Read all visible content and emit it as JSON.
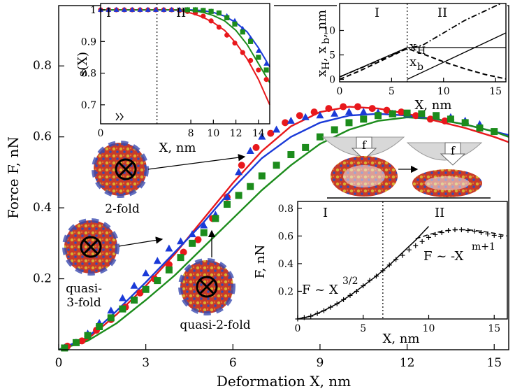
{
  "colors": {
    "red": "#e8181c",
    "blue": "#1a3ad8",
    "green": "#1c8c1c",
    "black": "#000000",
    "capsid_blue": "#3a4ab0",
    "capsid_red": "#c83a2a",
    "capsid_yellow": "#d8b030"
  },
  "chart_data": [
    {
      "id": "main",
      "type": "scatter",
      "xlabel": "Deformation X, nm",
      "ylabel": "Force F, nN",
      "xlim": [
        0,
        15.5
      ],
      "ylim": [
        0,
        0.97
      ],
      "xticks": [
        0,
        3,
        6,
        9,
        12,
        15
      ],
      "yticks": [
        0.2,
        0.4,
        0.6,
        0.8
      ],
      "series": [
        {
          "name": "2-fold",
          "color": "red",
          "marker": "circle",
          "x": [
            0.3,
            0.8,
            1.3,
            1.8,
            2.3,
            2.8,
            3.3,
            3.8,
            4.3,
            4.8,
            5.3,
            5.8,
            6.3,
            6.8,
            7.3,
            7.8,
            8.3,
            8.8,
            9.3,
            9.8,
            10.3,
            10.8,
            11.3,
            11.8,
            12.3,
            12.8,
            13.3
          ],
          "y": [
            0.01,
            0.025,
            0.055,
            0.085,
            0.12,
            0.16,
            0.2,
            0.24,
            0.275,
            0.31,
            0.37,
            0.43,
            0.52,
            0.57,
            0.61,
            0.64,
            0.66,
            0.67,
            0.68,
            0.685,
            0.685,
            0.68,
            0.675,
            0.67,
            0.66,
            0.65,
            0.645
          ]
        },
        {
          "name": "quasi-3-fold",
          "color": "blue",
          "marker": "triangle",
          "x": [
            0.2,
            0.6,
            1.0,
            1.4,
            1.8,
            2.2,
            2.6,
            3.0,
            3.4,
            3.8,
            4.2,
            4.6,
            5.0,
            5.4,
            5.8,
            6.2,
            6.6,
            7.0,
            7.5,
            8.0,
            8.5,
            9.0,
            9.5,
            10.0,
            10.5,
            11.0,
            11.5,
            12.0,
            12.5,
            13.0,
            13.5,
            14.0,
            14.5
          ],
          "y": [
            0.005,
            0.02,
            0.045,
            0.075,
            0.11,
            0.145,
            0.18,
            0.215,
            0.25,
            0.285,
            0.305,
            0.325,
            0.35,
            0.38,
            0.43,
            0.5,
            0.56,
            0.6,
            0.62,
            0.645,
            0.655,
            0.66,
            0.665,
            0.67,
            0.67,
            0.668,
            0.665,
            0.663,
            0.66,
            0.658,
            0.655,
            0.645,
            0.635
          ]
        },
        {
          "name": "quasi-2-fold",
          "color": "green",
          "marker": "square",
          "x": [
            0.2,
            0.6,
            1.0,
            1.4,
            1.8,
            2.2,
            2.6,
            3.0,
            3.4,
            3.8,
            4.2,
            4.6,
            5.0,
            5.4,
            5.8,
            6.2,
            6.6,
            7.0,
            7.5,
            8.0,
            8.5,
            9.0,
            9.5,
            10.0,
            10.5,
            11.0,
            11.5,
            12.0,
            12.5,
            13.0,
            13.5,
            14.0,
            14.5,
            15.0
          ],
          "y": [
            0.005,
            0.02,
            0.04,
            0.065,
            0.09,
            0.115,
            0.14,
            0.17,
            0.195,
            0.225,
            0.26,
            0.3,
            0.33,
            0.37,
            0.41,
            0.435,
            0.46,
            0.49,
            0.52,
            0.55,
            0.57,
            0.6,
            0.62,
            0.64,
            0.65,
            0.66,
            0.665,
            0.667,
            0.665,
            0.66,
            0.65,
            0.64,
            0.625,
            0.615
          ]
        },
        {
          "name": "fit-2-fold",
          "color": "red",
          "marker": "line",
          "x": [
            0,
            1,
            2,
            3,
            4,
            5,
            6,
            7,
            8,
            9,
            10,
            11,
            12,
            13,
            14,
            15,
            15.5
          ],
          "y": [
            0,
            0.03,
            0.1,
            0.18,
            0.27,
            0.37,
            0.47,
            0.56,
            0.63,
            0.67,
            0.685,
            0.68,
            0.665,
            0.645,
            0.625,
            0.6,
            0.585
          ]
        },
        {
          "name": "fit-quasi-3-fold",
          "color": "blue",
          "marker": "line",
          "x": [
            0,
            1,
            2,
            3,
            4,
            5,
            6,
            7,
            8,
            9,
            10,
            11,
            12,
            13,
            14,
            15,
            15.5
          ],
          "y": [
            0,
            0.035,
            0.11,
            0.19,
            0.275,
            0.36,
            0.455,
            0.54,
            0.6,
            0.64,
            0.66,
            0.665,
            0.66,
            0.65,
            0.635,
            0.615,
            0.605
          ]
        },
        {
          "name": "fit-quasi-2-fold",
          "color": "green",
          "marker": "line",
          "x": [
            0,
            1,
            2,
            3,
            4,
            5,
            6,
            7,
            8,
            9,
            10,
            11,
            12,
            13,
            14,
            15,
            15.5
          ],
          "y": [
            0,
            0.025,
            0.075,
            0.14,
            0.21,
            0.29,
            0.37,
            0.45,
            0.52,
            0.58,
            0.62,
            0.645,
            0.655,
            0.65,
            0.635,
            0.615,
            0.6
          ]
        }
      ],
      "annotations": [
        {
          "id": "a2",
          "text": "2-fold",
          "target": [
            6.8,
            0.54
          ]
        },
        {
          "id": "aq3",
          "text": "quasi-3-fold",
          "lines": [
            "quasi-",
            "3-fold"
          ],
          "target": [
            4.3,
            0.305
          ]
        },
        {
          "id": "aq2",
          "text": "quasi-2-fold",
          "target": [
            5.4,
            0.37
          ]
        }
      ]
    },
    {
      "id": "inset_sx",
      "type": "scatter",
      "xlabel": "X, nm",
      "ylabel": "s(X)",
      "xlim": [
        0,
        15
      ],
      "ylim": [
        0.64,
        1.02
      ],
      "xticks": [
        0,
        8,
        10,
        12,
        14
      ],
      "yticks": [
        0.7,
        0.8,
        0.9,
        1
      ],
      "regions": [
        "I",
        "II"
      ],
      "divider_x": 5,
      "series": [
        {
          "name": "2-fold",
          "color": "red",
          "marker": "circle",
          "x": [
            0,
            0.7,
            1.4,
            2.1,
            2.8,
            3.5,
            4.2,
            4.9,
            5.6,
            6.3,
            7.0,
            7.7,
            8.4,
            9.1,
            9.8,
            10.5,
            11.2,
            11.9,
            12.6,
            13.3,
            14.0,
            14.7
          ],
          "y": [
            1,
            1,
            1,
            1,
            1,
            1,
            1,
            1,
            1,
            1,
            0.998,
            0.995,
            0.99,
            0.98,
            0.965,
            0.945,
            0.92,
            0.895,
            0.865,
            0.84,
            0.81,
            0.78
          ]
        },
        {
          "name": "quasi-3-fold",
          "color": "blue",
          "marker": "triangle",
          "x": [
            0,
            0.7,
            1.4,
            2.1,
            2.8,
            3.5,
            4.2,
            4.9,
            5.6,
            6.3,
            7.0,
            7.7,
            8.4,
            9.1,
            9.8,
            10.5,
            11.2,
            11.9,
            12.6,
            13.3,
            14.0,
            14.7
          ],
          "y": [
            1,
            1,
            1,
            1,
            1,
            1,
            1,
            1,
            1,
            1,
            1,
            1,
            1,
            0.998,
            0.995,
            0.99,
            0.98,
            0.965,
            0.94,
            0.91,
            0.87,
            0.83
          ]
        },
        {
          "name": "quasi-2-fold",
          "color": "green",
          "marker": "square",
          "x": [
            7.7,
            8.4,
            9.1,
            9.8,
            10.5,
            11.2,
            11.9,
            12.6,
            13.3,
            14.0,
            14.7
          ],
          "y": [
            1,
            1,
            0.998,
            0.995,
            0.99,
            0.975,
            0.955,
            0.93,
            0.9,
            0.85,
            0.81
          ]
        },
        {
          "name": "fit-red",
          "color": "red",
          "marker": "line",
          "x": [
            0,
            6,
            7,
            8,
            9,
            10,
            11,
            12,
            13,
            14,
            15
          ],
          "y": [
            1,
            1,
            0.998,
            0.99,
            0.978,
            0.96,
            0.935,
            0.895,
            0.845,
            0.78,
            0.7
          ]
        },
        {
          "name": "fit-blue",
          "color": "blue",
          "marker": "line",
          "x": [
            0,
            8,
            9,
            10,
            11,
            12,
            13,
            14,
            15
          ],
          "y": [
            1,
            1,
            0.998,
            0.992,
            0.98,
            0.96,
            0.93,
            0.88,
            0.82
          ]
        },
        {
          "name": "fit-green",
          "color": "green",
          "marker": "line",
          "x": [
            0,
            7,
            8,
            9,
            10,
            11,
            12,
            13,
            14,
            15
          ],
          "y": [
            1,
            1,
            0.998,
            0.993,
            0.982,
            0.965,
            0.935,
            0.89,
            0.83,
            0.77
          ]
        }
      ]
    },
    {
      "id": "inset_xh",
      "type": "line",
      "xlabel": "X, nm",
      "ylabel": "x_H, x_b, nm",
      "xlim": [
        0,
        16
      ],
      "ylim": [
        -0.5,
        15.5
      ],
      "xticks": [
        0,
        5,
        10,
        15
      ],
      "yticks": [
        0,
        5,
        10
      ],
      "regions": [
        "I",
        "II"
      ],
      "divider_x": 6.5,
      "labels": [
        "x_H",
        "x_b"
      ],
      "series": [
        {
          "name": "x_H",
          "style": "solid",
          "x": [
            0,
            6.5,
            16
          ],
          "y": [
            0.5,
            6.5,
            6.5
          ]
        },
        {
          "name": "x_b",
          "style": "dashed",
          "x": [
            0,
            2,
            4,
            6.5,
            8,
            10,
            12,
            14,
            16
          ],
          "y": [
            0,
            1.8,
            3.8,
            6.3,
            5.2,
            3.6,
            2.2,
            1.0,
            0.1
          ]
        },
        {
          "name": "diagonal",
          "style": "solid",
          "x": [
            6.5,
            16
          ],
          "y": [
            0,
            9.5
          ]
        },
        {
          "name": "dash-dot",
          "style": "dashdot",
          "x": [
            0,
            6.5,
            8,
            10,
            12,
            14,
            16
          ],
          "y": [
            0.5,
            6.3,
            7.0,
            9.5,
            12.0,
            14.0,
            16
          ]
        }
      ]
    },
    {
      "id": "inset_fx",
      "type": "line",
      "xlabel": "X, nm",
      "ylabel": "F, nN",
      "xlim": [
        0,
        16
      ],
      "ylim": [
        0,
        0.85
      ],
      "xticks": [
        0,
        5,
        10,
        15
      ],
      "yticks": [
        0.2,
        0.4,
        0.6,
        0.8
      ],
      "regions": [
        "I",
        "II"
      ],
      "divider_x": 6.5,
      "law1": "F ~ X",
      "law1_exp": "3/2",
      "law2": "F ~ -X",
      "law2_exp": "m+1",
      "series": [
        {
          "name": "data",
          "style": "plus",
          "x": [
            0,
            0.5,
            1,
            1.5,
            2,
            2.5,
            3,
            3.5,
            4,
            4.5,
            5,
            5.5,
            6,
            6.5,
            7,
            7.5,
            8,
            8.5,
            9,
            9.5,
            10,
            10.5,
            11,
            11.5,
            12,
            12.5,
            13,
            13.5,
            14,
            14.5,
            15,
            15.5
          ],
          "y": [
            0,
            0.01,
            0.02,
            0.04,
            0.06,
            0.085,
            0.11,
            0.14,
            0.17,
            0.2,
            0.24,
            0.28,
            0.31,
            0.35,
            0.39,
            0.43,
            0.46,
            0.5,
            0.53,
            0.56,
            0.59,
            0.61,
            0.625,
            0.64,
            0.645,
            0.645,
            0.64,
            0.635,
            0.625,
            0.615,
            0.605,
            0.595
          ]
        },
        {
          "name": "power-3/2",
          "style": "solid",
          "x": [
            0,
            1,
            2,
            3,
            4,
            5,
            6,
            7,
            8,
            9,
            10
          ],
          "y": [
            0,
            0.02,
            0.06,
            0.11,
            0.17,
            0.24,
            0.31,
            0.39,
            0.48,
            0.57,
            0.67
          ]
        },
        {
          "name": "power-m+1",
          "style": "dashed",
          "x": [
            9,
            10,
            11,
            12,
            13,
            14,
            15,
            16
          ],
          "y": [
            0.58,
            0.61,
            0.635,
            0.645,
            0.645,
            0.635,
            0.62,
            0.6
          ]
        }
      ]
    }
  ],
  "indent_diagram": {
    "force_label": "f"
  }
}
